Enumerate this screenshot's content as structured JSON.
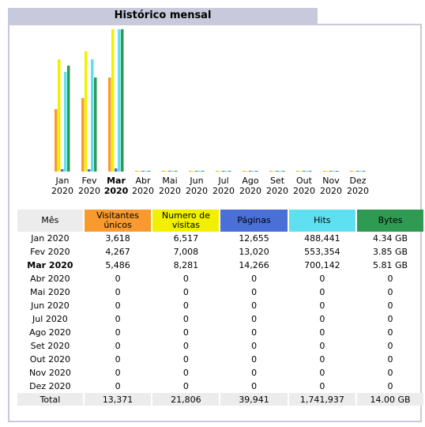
{
  "title": "Histórico mensal",
  "chart_data": {
    "type": "bar",
    "categories": [
      {
        "month": "Jan",
        "year": "2020",
        "bold": false
      },
      {
        "month": "Fev",
        "year": "2020",
        "bold": false
      },
      {
        "month": "Mar",
        "year": "2020",
        "bold": true
      },
      {
        "month": "Abr",
        "year": "2020",
        "bold": false
      },
      {
        "month": "Mai",
        "year": "2020",
        "bold": false
      },
      {
        "month": "Jun",
        "year": "2020",
        "bold": false
      },
      {
        "month": "Jul",
        "year": "2020",
        "bold": false
      },
      {
        "month": "Ago",
        "year": "2020",
        "bold": false
      },
      {
        "month": "Set",
        "year": "2020",
        "bold": false
      },
      {
        "month": "Out",
        "year": "2020",
        "bold": false
      },
      {
        "month": "Nov",
        "year": "2020",
        "bold": false
      },
      {
        "month": "Dez",
        "year": "2020",
        "bold": false
      }
    ],
    "series": [
      {
        "name": "Visitantes únicos",
        "color": "#f89a2d",
        "values": [
          3618,
          4267,
          5486,
          0,
          0,
          0,
          0,
          0,
          0,
          0,
          0,
          0
        ]
      },
      {
        "name": "Numero de visitas",
        "color": "#f0f000",
        "values": [
          6517,
          7008,
          8281,
          0,
          0,
          0,
          0,
          0,
          0,
          0,
          0,
          0
        ]
      },
      {
        "name": "Páginas",
        "color": "#4a70d8",
        "values": [
          12655,
          13020,
          14266,
          0,
          0,
          0,
          0,
          0,
          0,
          0,
          0,
          0
        ]
      },
      {
        "name": "Hits",
        "color": "#5fe0f0",
        "values": [
          488441,
          553354,
          700142,
          0,
          0,
          0,
          0,
          0,
          0,
          0,
          0,
          0
        ]
      },
      {
        "name": "Bytes",
        "color": "#2f9a52",
        "values": [
          4.34,
          3.85,
          5.81,
          0,
          0,
          0,
          0,
          0,
          0,
          0,
          0,
          0
        ]
      }
    ],
    "scale_groups": [
      [
        0,
        1
      ],
      [
        2,
        3
      ],
      [
        4
      ]
    ]
  },
  "table": {
    "headers": {
      "mes": "Mês",
      "visitantes": "Visitantes únicos",
      "numero": "Numero de visitas",
      "paginas": "Páginas",
      "hits": "Hits",
      "bytes": "Bytes"
    },
    "rows": [
      {
        "mes": "Jan 2020",
        "visitantes": "3,618",
        "numero": "6,517",
        "paginas": "12,655",
        "hits": "488,441",
        "bytes": "4.34 GB",
        "current": false
      },
      {
        "mes": "Fev 2020",
        "visitantes": "4,267",
        "numero": "7,008",
        "paginas": "13,020",
        "hits": "553,354",
        "bytes": "3.85 GB",
        "current": false
      },
      {
        "mes": "Mar 2020",
        "visitantes": "5,486",
        "numero": "8,281",
        "paginas": "14,266",
        "hits": "700,142",
        "bytes": "5.81 GB",
        "current": true
      },
      {
        "mes": "Abr 2020",
        "visitantes": "0",
        "numero": "0",
        "paginas": "0",
        "hits": "0",
        "bytes": "0",
        "current": false
      },
      {
        "mes": "Mai 2020",
        "visitantes": "0",
        "numero": "0",
        "paginas": "0",
        "hits": "0",
        "bytes": "0",
        "current": false
      },
      {
        "mes": "Jun 2020",
        "visitantes": "0",
        "numero": "0",
        "paginas": "0",
        "hits": "0",
        "bytes": "0",
        "current": false
      },
      {
        "mes": "Jul 2020",
        "visitantes": "0",
        "numero": "0",
        "paginas": "0",
        "hits": "0",
        "bytes": "0",
        "current": false
      },
      {
        "mes": "Ago 2020",
        "visitantes": "0",
        "numero": "0",
        "paginas": "0",
        "hits": "0",
        "bytes": "0",
        "current": false
      },
      {
        "mes": "Set 2020",
        "visitantes": "0",
        "numero": "0",
        "paginas": "0",
        "hits": "0",
        "bytes": "0",
        "current": false
      },
      {
        "mes": "Out 2020",
        "visitantes": "0",
        "numero": "0",
        "paginas": "0",
        "hits": "0",
        "bytes": "0",
        "current": false
      },
      {
        "mes": "Nov 2020",
        "visitantes": "0",
        "numero": "0",
        "paginas": "0",
        "hits": "0",
        "bytes": "0",
        "current": false
      },
      {
        "mes": "Dez 2020",
        "visitantes": "0",
        "numero": "0",
        "paginas": "0",
        "hits": "0",
        "bytes": "0",
        "current": false
      }
    ],
    "total": {
      "mes": "Total",
      "visitantes": "13,371",
      "numero": "21,806",
      "paginas": "39,941",
      "hits": "1,741,937",
      "bytes": "14.00 GB"
    }
  }
}
